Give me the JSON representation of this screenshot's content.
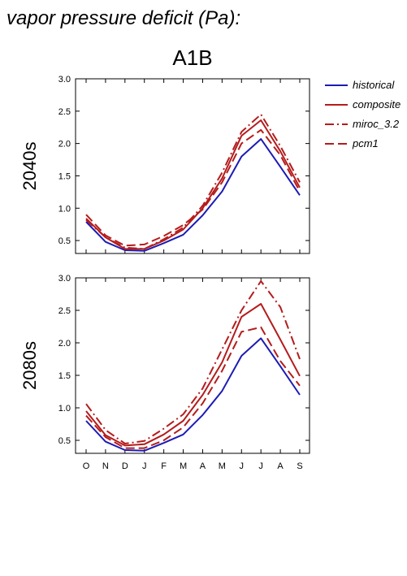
{
  "figure": {
    "heading": "vapor pressure deficit (Pa):",
    "scenario": "A1B"
  },
  "chart_data": [
    {
      "type": "line",
      "panel": "2040s",
      "x": [
        "O",
        "N",
        "D",
        "J",
        "F",
        "M",
        "A",
        "M",
        "J",
        "J",
        "A",
        "S"
      ],
      "ylim": [
        0.3,
        3.0
      ],
      "yticks": [
        "0.5",
        "1.0",
        "1.5",
        "2.0",
        "2.5",
        "3.0"
      ],
      "grid": false,
      "legend_position": "right",
      "series": [
        {
          "name": "historical",
          "color": "#1c1cb4",
          "dash": "solid",
          "values": [
            0.79,
            0.48,
            0.35,
            0.34,
            0.46,
            0.59,
            0.89,
            1.26,
            1.8,
            2.07,
            1.64,
            1.2
          ]
        },
        {
          "name": "composite",
          "color": "#b41c1c",
          "dash": "solid",
          "values": [
            0.84,
            0.55,
            0.37,
            0.37,
            0.5,
            0.67,
            1.0,
            1.46,
            2.12,
            2.36,
            1.88,
            1.32
          ]
        },
        {
          "name": "miroc_3.2",
          "color": "#b41c1c",
          "dash": "dashdot",
          "values": [
            0.82,
            0.55,
            0.39,
            0.37,
            0.52,
            0.7,
            1.04,
            1.55,
            2.18,
            2.45,
            1.96,
            1.4
          ]
        },
        {
          "name": "pcm1",
          "color": "#b41c1c",
          "dash": "dash",
          "values": [
            0.9,
            0.58,
            0.42,
            0.44,
            0.57,
            0.74,
            0.98,
            1.4,
            2.0,
            2.21,
            1.82,
            1.26
          ]
        }
      ]
    },
    {
      "type": "line",
      "panel": "2080s",
      "x": [
        "O",
        "N",
        "D",
        "J",
        "F",
        "M",
        "A",
        "M",
        "J",
        "J",
        "A",
        "S"
      ],
      "ylim": [
        0.3,
        3.0
      ],
      "yticks": [
        "0.5",
        "1.0",
        "1.5",
        "2.0",
        "2.5",
        "3.0"
      ],
      "grid": false,
      "legend_position": "none",
      "series": [
        {
          "name": "historical",
          "color": "#1c1cb4",
          "dash": "solid",
          "values": [
            0.8,
            0.48,
            0.35,
            0.34,
            0.46,
            0.59,
            0.89,
            1.26,
            1.8,
            2.07,
            1.64,
            1.2
          ]
        },
        {
          "name": "composite",
          "color": "#b41c1c",
          "dash": "solid",
          "values": [
            0.95,
            0.58,
            0.42,
            0.44,
            0.59,
            0.8,
            1.2,
            1.7,
            2.4,
            2.6,
            2.05,
            1.49
          ]
        },
        {
          "name": "miroc_3.2",
          "color": "#b41c1c",
          "dash": "dashdot",
          "values": [
            1.06,
            0.66,
            0.45,
            0.49,
            0.68,
            0.9,
            1.3,
            1.9,
            2.5,
            2.95,
            2.55,
            1.75
          ]
        },
        {
          "name": "pcm1",
          "color": "#b41c1c",
          "dash": "dash",
          "values": [
            0.88,
            0.55,
            0.38,
            0.38,
            0.5,
            0.7,
            1.07,
            1.57,
            2.17,
            2.24,
            1.72,
            1.34
          ]
        }
      ]
    }
  ]
}
